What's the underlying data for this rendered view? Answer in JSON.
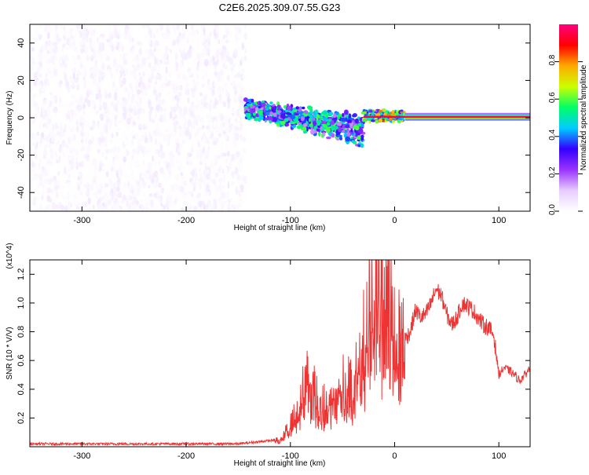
{
  "title": "C2E6.2025.309.07.55.G23",
  "chart_data": [
    {
      "type": "heatmap",
      "title": "C2E6.2025.309.07.55.G23",
      "xlabel": "Height of straight line (km)",
      "ylabel": "Frequency (Hz)",
      "xlim": [
        -350,
        130
      ],
      "ylim": [
        -50,
        50
      ],
      "x_ticks": [
        -300,
        -200,
        -100,
        0,
        100
      ],
      "y_ticks": [
        -40,
        -20,
        0,
        20,
        40
      ],
      "colorbar": {
        "label": "Normalized spectral amplitude",
        "range": [
          0,
          1
        ],
        "ticks": [
          0.0,
          0.2,
          0.4,
          0.6,
          0.8
        ],
        "colormap": [
          "#ffffff",
          "#e6ccff",
          "#9933ff",
          "#3300ff",
          "#00ccff",
          "#00ff66",
          "#ccff00",
          "#ffaa00",
          "#ff0000",
          "#ff0080"
        ]
      },
      "regions": [
        {
          "name": "noise",
          "x_range": [
            -350,
            -143
          ],
          "freq_range": [
            -50,
            50
          ],
          "amplitude": 0.1
        },
        {
          "name": "transition",
          "x_range": [
            -143,
            -30
          ],
          "freq_center": 3,
          "freq_spread": 10,
          "amplitude": 0.35
        },
        {
          "name": "signal",
          "x_range": [
            -30,
            10
          ],
          "freq_center": 1,
          "freq_spread": 3,
          "amplitude": 0.6
        },
        {
          "name": "tone",
          "x_range": [
            10,
            130
          ],
          "freq_center": 0.5,
          "amplitude": 0.95
        }
      ]
    },
    {
      "type": "line",
      "xlabel": "Height of straight line (km)",
      "ylabel": "SNR (10 * V/V)",
      "y_multiplier": "(x10^4)",
      "xlim": [
        -350,
        130
      ],
      "ylim": [
        0,
        1.3
      ],
      "x_ticks": [
        -300,
        -200,
        -100,
        0,
        100
      ],
      "y_ticks": [
        0.2,
        0.4,
        0.6,
        0.8,
        1.0,
        1.2
      ],
      "series": [
        {
          "name": "SNR",
          "color": "#ee3333",
          "x": [
            -350,
            -150,
            -110,
            -100,
            -90,
            -85,
            -75,
            -65,
            -55,
            -45,
            -40,
            -35,
            -30,
            -25,
            -20,
            -15,
            -10,
            -5,
            0,
            5,
            10,
            15,
            20,
            25,
            30,
            35,
            40,
            45,
            50,
            55,
            60,
            65,
            70,
            75,
            80,
            85,
            90,
            95,
            98,
            100,
            105,
            110,
            115,
            120,
            125,
            130
          ],
          "y": [
            0.02,
            0.02,
            0.05,
            0.15,
            0.3,
            0.5,
            0.35,
            0.28,
            0.4,
            0.48,
            0.35,
            0.55,
            0.75,
            0.9,
            1.0,
            1.05,
            1.0,
            0.9,
            1.1,
            0.85,
            0.75,
            0.8,
            0.95,
            0.9,
            0.92,
            1.0,
            1.1,
            1.05,
            0.92,
            0.85,
            0.9,
            1.0,
            0.98,
            0.95,
            0.9,
            0.85,
            0.83,
            0.78,
            0.62,
            0.5,
            0.55,
            0.53,
            0.5,
            0.46,
            0.5,
            0.55
          ]
        }
      ]
    }
  ]
}
